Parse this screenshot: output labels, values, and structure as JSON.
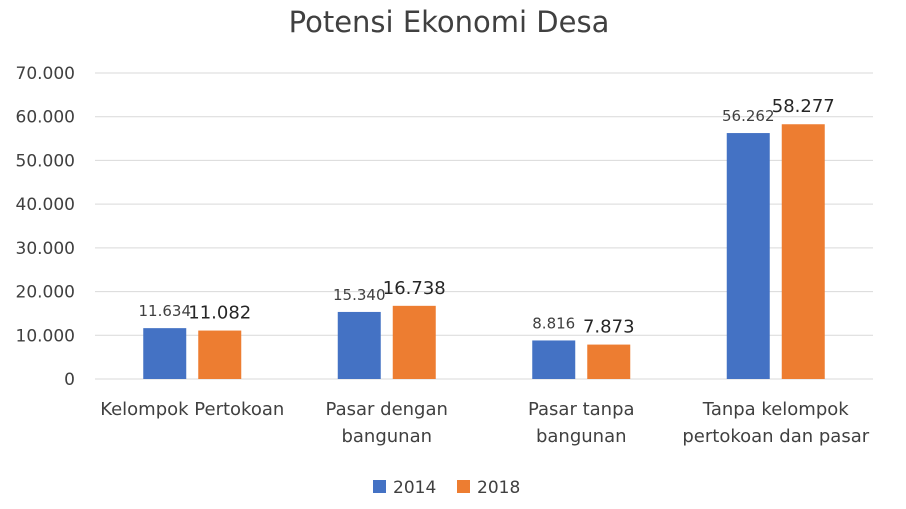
{
  "chart_data": {
    "type": "bar",
    "title": "Potensi Ekonomi Desa",
    "xlabel": "",
    "ylabel": "",
    "categories": [
      [
        "Kelompok Pertokoan"
      ],
      [
        "Pasar dengan",
        "bangunan"
      ],
      [
        "Pasar tanpa",
        "bangunan"
      ],
      [
        "Tanpa kelompok",
        "pertokoan dan pasar"
      ]
    ],
    "series": [
      {
        "name": "2014",
        "color": "#4472c4",
        "values": [
          11634,
          15340,
          8816,
          56262
        ],
        "labels": [
          "11.634",
          "15.340",
          "8.816",
          "56.262"
        ]
      },
      {
        "name": "2018",
        "color": "#ed7d31",
        "values": [
          11082,
          16738,
          7873,
          58277
        ],
        "labels": [
          "11.082",
          "16.738",
          "7.873",
          "58.277"
        ]
      }
    ],
    "ylim": [
      0,
      70000
    ],
    "yticks": [
      0,
      10000,
      20000,
      30000,
      40000,
      50000,
      60000,
      70000
    ],
    "ytick_labels": [
      "0",
      "10.000",
      "20.000",
      "30.000",
      "40.000",
      "50.000",
      "60.000",
      "70.000"
    ],
    "grid": true,
    "legend_position": "bottom"
  }
}
